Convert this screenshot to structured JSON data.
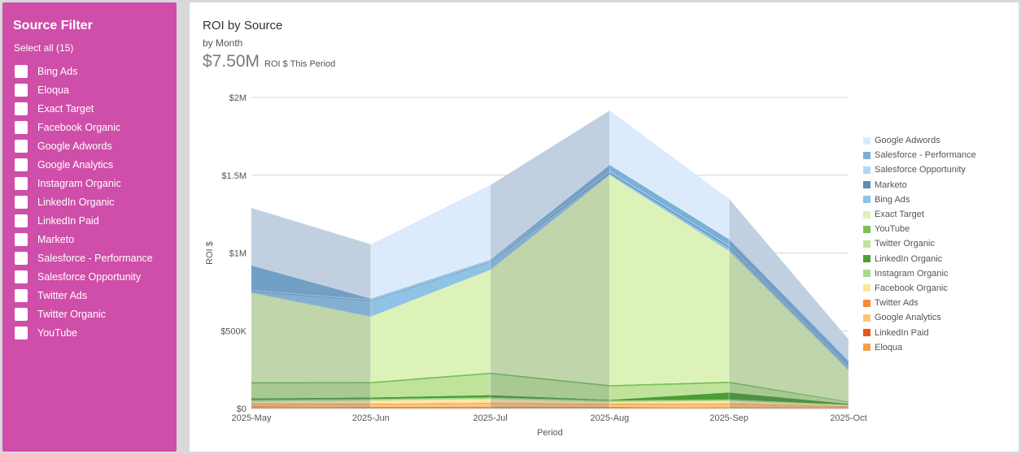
{
  "sidebar": {
    "title": "Source Filter",
    "select_all": "Select all (15)",
    "items": [
      {
        "label": "Bing Ads"
      },
      {
        "label": "Eloqua"
      },
      {
        "label": "Exact Target"
      },
      {
        "label": "Facebook Organic"
      },
      {
        "label": "Google Adwords"
      },
      {
        "label": "Google Analytics"
      },
      {
        "label": "Instagram Organic"
      },
      {
        "label": "LinkedIn Organic"
      },
      {
        "label": "LinkedIn Paid"
      },
      {
        "label": "Marketo"
      },
      {
        "label": "Salesforce - Performance"
      },
      {
        "label": "Salesforce Opportunity"
      },
      {
        "label": "Twitter Ads"
      },
      {
        "label": "Twitter Organic"
      },
      {
        "label": "YouTube"
      }
    ]
  },
  "panel": {
    "title": "ROI by Source",
    "subtitle": "by Month",
    "kpi_value": "$7.50M",
    "kpi_label": "ROI $ This Period"
  },
  "chart_data": {
    "type": "area",
    "stacked": true,
    "title": "ROI by Source",
    "subtitle": "by Month",
    "xlabel": "Period",
    "ylabel": "ROI $",
    "ylim": [
      0,
      2000000
    ],
    "y_ticks": [
      0,
      500000,
      1000000,
      1500000,
      2000000
    ],
    "y_tick_labels": [
      "$0",
      "$500K",
      "$1M",
      "$1.5M",
      "$2M"
    ],
    "categories": [
      "2025-May",
      "2025-Jun",
      "2025-Jul",
      "2025-Aug",
      "2025-Sep",
      "2025-Oct"
    ],
    "grid": true,
    "legend_position": "right",
    "series": [
      {
        "name": "Eloqua",
        "color": "#f5a04a",
        "values": [
          10000,
          8000,
          8000,
          8000,
          6000,
          5000
        ]
      },
      {
        "name": "LinkedIn Paid",
        "color": "#e8541c",
        "values": [
          3000,
          3000,
          3000,
          3000,
          2000,
          2000
        ]
      },
      {
        "name": "Google Analytics",
        "color": "#fcc77a",
        "values": [
          15000,
          15000,
          20000,
          15000,
          20000,
          5000
        ]
      },
      {
        "name": "Twitter Ads",
        "color": "#f58a35",
        "values": [
          5000,
          5000,
          5000,
          5000,
          5000,
          3000
        ]
      },
      {
        "name": "Facebook Organic",
        "color": "#fde7a6",
        "values": [
          12000,
          20000,
          25000,
          10000,
          15000,
          5000
        ]
      },
      {
        "name": "Instagram Organic",
        "color": "#a8d98a",
        "values": [
          10000,
          10000,
          10000,
          10000,
          10000,
          5000
        ]
      },
      {
        "name": "LinkedIn Organic",
        "color": "#4b9e35",
        "values": [
          10000,
          10000,
          15000,
          5000,
          45000,
          5000
        ]
      },
      {
        "name": "Twitter Organic",
        "color": "#bfe39a",
        "values": [
          95000,
          90000,
          135000,
          85000,
          60000,
          10000
        ]
      },
      {
        "name": "YouTube",
        "color": "#7cc05c",
        "values": [
          10000,
          10000,
          10000,
          10000,
          10000,
          5000
        ]
      },
      {
        "name": "Exact Target",
        "color": "#ddf2b8",
        "values": [
          575000,
          420000,
          660000,
          1350000,
          840000,
          200000
        ]
      },
      {
        "name": "Bing Ads",
        "color": "#8fc3e6",
        "values": [
          5000,
          100000,
          50000,
          10000,
          20000,
          10000
        ]
      },
      {
        "name": "Marketo",
        "color": "#5b8fb8",
        "values": [
          5000,
          5000,
          5000,
          10000,
          10000,
          5000
        ]
      },
      {
        "name": "Salesforce Opportunity",
        "color": "#b4d7f2",
        "values": [
          5000,
          5000,
          5000,
          5000,
          5000,
          5000
        ]
      },
      {
        "name": "Salesforce - Performance",
        "color": "#7ab0d8",
        "values": [
          160000,
          5000,
          5000,
          40000,
          40000,
          40000
        ]
      },
      {
        "name": "Google Adwords",
        "color": "#dcebfc",
        "values": [
          370000,
          350000,
          480000,
          350000,
          260000,
          140000
        ]
      }
    ]
  }
}
